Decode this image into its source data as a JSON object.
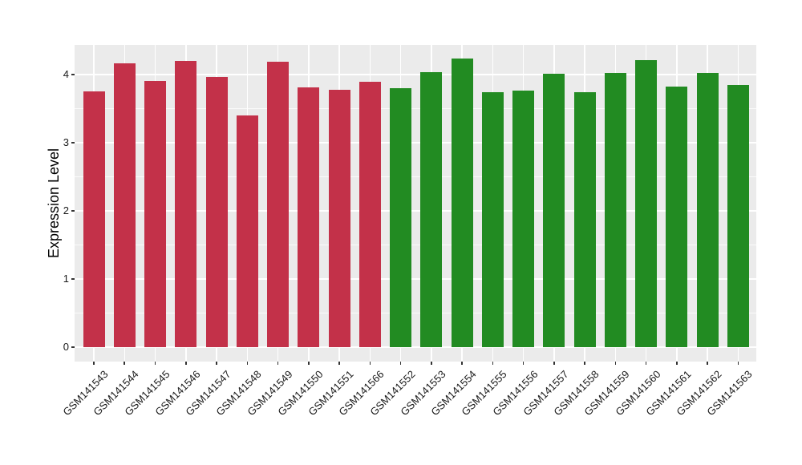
{
  "chart_data": {
    "type": "bar",
    "title": "",
    "xlabel": "",
    "ylabel": "Expression Level",
    "categories": [
      "GSM141543",
      "GSM141544",
      "GSM141545",
      "GSM141546",
      "GSM141547",
      "GSM141548",
      "GSM141549",
      "GSM141550",
      "GSM141551",
      "GSM141566",
      "GSM141552",
      "GSM141553",
      "GSM141554",
      "GSM141555",
      "GSM141556",
      "GSM141557",
      "GSM141558",
      "GSM141559",
      "GSM141560",
      "GSM141561",
      "GSM141562",
      "GSM141563"
    ],
    "values": [
      3.75,
      4.17,
      3.91,
      4.2,
      3.96,
      3.4,
      4.19,
      3.81,
      3.78,
      3.89,
      3.8,
      4.04,
      4.23,
      3.74,
      3.76,
      4.01,
      3.74,
      4.02,
      4.21,
      3.82,
      4.02,
      3.85
    ],
    "bar_group": [
      0,
      0,
      0,
      0,
      0,
      0,
      0,
      0,
      0,
      0,
      1,
      1,
      1,
      1,
      1,
      1,
      1,
      1,
      1,
      1,
      1,
      1
    ],
    "group_colors": [
      "#C33149",
      "#228B22"
    ],
    "yticks": [
      0,
      1,
      2,
      3,
      4
    ],
    "ylim": [
      0,
      4.42
    ],
    "grid": true,
    "legend": "none",
    "panel_background": "#EBEBEB",
    "gridline_color": "#FFFFFF"
  }
}
